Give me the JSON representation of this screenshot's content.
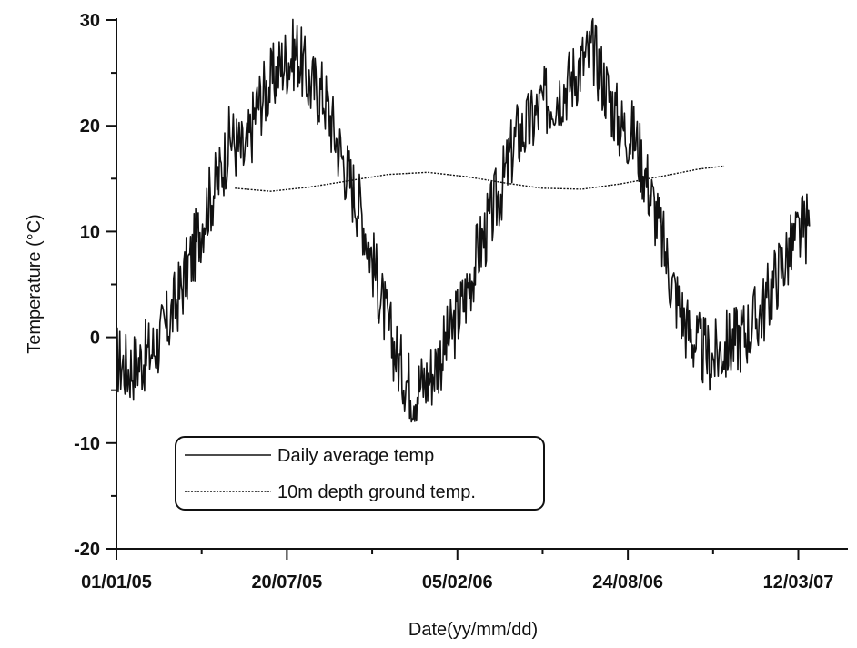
{
  "chart_data": {
    "type": "line",
    "title": "",
    "xlabel": "Date(yy/mm/dd)",
    "ylabel": "Temperature (°C)",
    "x_range": [
      "2005-01-01",
      "2007-04-05"
    ],
    "ylim": [
      -20,
      30
    ],
    "y_ticks": [
      -20,
      -10,
      0,
      10,
      20,
      30
    ],
    "y_tick_labels": [
      "-20",
      "-10",
      "0",
      "10",
      "20",
      "30"
    ],
    "x_ticks": [
      "2005-01-01",
      "2005-07-20",
      "2006-02-05",
      "2006-08-24",
      "2007-03-12"
    ],
    "x_tick_labels": [
      "01/01/05",
      "20/07/05",
      "05/02/06",
      "24/08/06",
      "12/03/07"
    ],
    "grid": false,
    "legend_position": "lower-left",
    "series": [
      {
        "name": "Daily average temp",
        "style": "solid",
        "x": [
          "2005-01-01",
          "2005-01-15",
          "2005-02-01",
          "2005-02-15",
          "2005-03-01",
          "2005-03-15",
          "2005-04-01",
          "2005-04-15",
          "2005-05-01",
          "2005-05-15",
          "2005-06-01",
          "2005-06-15",
          "2005-07-01",
          "2005-07-15",
          "2005-08-01",
          "2005-08-15",
          "2005-09-01",
          "2005-09-15",
          "2005-10-01",
          "2005-10-15",
          "2005-11-01",
          "2005-11-15",
          "2005-12-01",
          "2005-12-15",
          "2006-01-01",
          "2006-01-15",
          "2006-02-01",
          "2006-02-15",
          "2006-03-01",
          "2006-03-15",
          "2006-04-01",
          "2006-04-15",
          "2006-05-01",
          "2006-05-15",
          "2006-06-01",
          "2006-06-15",
          "2006-07-01",
          "2006-07-15",
          "2006-08-01",
          "2006-08-15",
          "2006-09-01",
          "2006-09-15",
          "2006-10-01",
          "2006-10-15",
          "2006-11-01",
          "2006-11-15",
          "2006-12-01",
          "2006-12-15",
          "2007-01-01",
          "2007-01-15",
          "2007-02-01",
          "2007-02-15",
          "2007-03-01",
          "2007-03-15",
          "2007-03-25"
        ],
        "y": [
          -2,
          -3,
          -2,
          -1,
          1,
          4,
          8,
          12,
          15,
          19,
          17,
          22,
          24,
          26,
          27,
          24,
          23,
          19,
          15,
          12,
          6,
          1,
          -3,
          -5,
          -4,
          -2,
          1,
          4,
          8,
          11,
          15,
          19,
          20,
          22,
          23,
          24,
          26,
          27,
          23,
          20,
          19,
          15,
          10,
          5,
          1,
          -1,
          -2,
          -1,
          0,
          1,
          3,
          6,
          8,
          10,
          10.5
        ]
      },
      {
        "name": "10m depth ground temp.",
        "style": "dotted",
        "x": [
          "2005-05-20",
          "2005-07-01",
          "2005-08-15",
          "2005-10-01",
          "2005-11-15",
          "2006-01-01",
          "2006-02-15",
          "2006-04-01",
          "2006-05-15",
          "2006-07-01",
          "2006-08-15",
          "2006-10-01",
          "2006-11-15",
          "2006-12-15"
        ],
        "y": [
          14.1,
          13.8,
          14.2,
          14.8,
          15.4,
          15.6,
          15.2,
          14.6,
          14.1,
          14.0,
          14.5,
          15.2,
          15.9,
          16.2
        ]
      }
    ]
  }
}
